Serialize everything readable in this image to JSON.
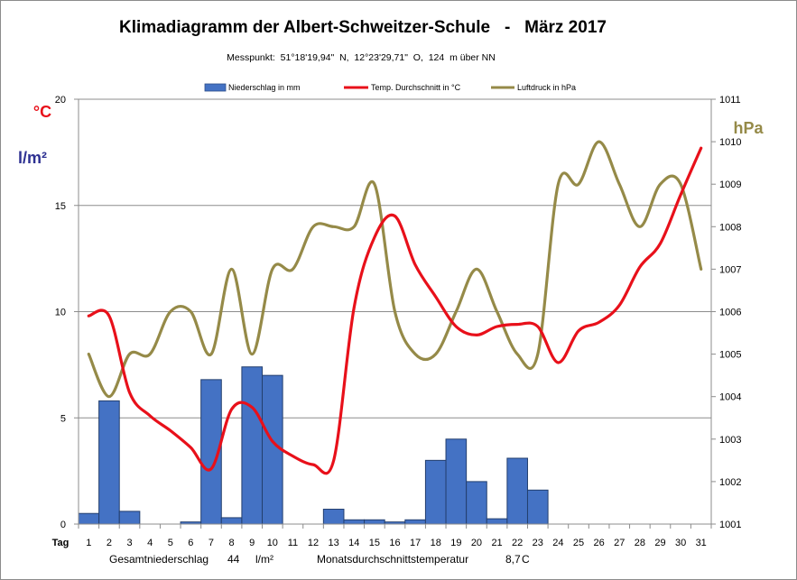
{
  "chart_data": {
    "type": "bar+line",
    "title": "Klimadiagramm der Albert-Schweitzer-Schule   -   März 2017",
    "subtitle": "Messpunkt:  51°18'19,94\"  N,  12°23'29,71\"  O,  124  m über NN",
    "x_axis": {
      "label": "Tag",
      "categories": [
        "1",
        "2",
        "3",
        "4",
        "5",
        "6",
        "7",
        "8",
        "9",
        "10",
        "11",
        "12",
        "13",
        "14",
        "15",
        "16",
        "17",
        "18",
        "19",
        "20",
        "21",
        "22",
        "23",
        "24",
        "25",
        "26",
        "27",
        "28",
        "29",
        "30",
        "31"
      ]
    },
    "y_left": {
      "unit_labels": [
        "°C",
        "l/m²"
      ],
      "ylim": [
        0,
        20
      ],
      "ticks": [
        0,
        5,
        10,
        15,
        20
      ]
    },
    "y_right": {
      "unit_label": "hPa",
      "ylim": [
        1001,
        1011
      ],
      "ticks": [
        1001,
        1002,
        1003,
        1004,
        1005,
        1006,
        1007,
        1008,
        1009,
        1010,
        1011
      ]
    },
    "legend_position": "top",
    "series": [
      {
        "name": "Niederschlag in mm",
        "kind": "bar",
        "axis": "left",
        "color": "#4472c4",
        "values": [
          0.5,
          5.8,
          0.6,
          0,
          0,
          0.1,
          6.8,
          0.3,
          7.4,
          7.0,
          0,
          0,
          0.7,
          0.2,
          0.2,
          0.1,
          0.2,
          3.0,
          4.0,
          2.0,
          0.25,
          3.1,
          1.6,
          0,
          0,
          0,
          0,
          0,
          0,
          0,
          0
        ]
      },
      {
        "name": "Temp. Durchschnitt in °C",
        "kind": "line",
        "axis": "left",
        "color": "#e8101a",
        "values": [
          9.8,
          9.8,
          6.2,
          5.1,
          4.4,
          3.6,
          2.6,
          5.4,
          5.5,
          3.9,
          3.2,
          2.8,
          3.0,
          10.2,
          13.5,
          14.5,
          12.2,
          10.7,
          9.3,
          8.9,
          9.3,
          9.4,
          9.3,
          7.6,
          9.1,
          9.5,
          10.3,
          12.1,
          13.2,
          15.5,
          17.7
        ]
      },
      {
        "name": "Luftdruck in hPa",
        "kind": "line",
        "axis": "right",
        "color": "#958a48",
        "values": [
          1005,
          1004,
          1005,
          1005,
          1006,
          1006,
          1005,
          1007,
          1005,
          1007,
          1007,
          1008,
          1008,
          1008,
          1009,
          1006,
          1005,
          1005,
          1006,
          1007,
          1006,
          1005,
          1005,
          1009,
          1009,
          1010,
          1009,
          1008,
          1009,
          1009,
          1007
        ]
      }
    ],
    "footer": {
      "total_precip_label": "Gesamtniederschlag",
      "total_precip_value": "44",
      "total_precip_unit": "l/m²",
      "mean_temp_label": "Monatsdurchschnittstemperatur",
      "mean_temp_value": "8,7",
      "mean_temp_unit": "C"
    }
  }
}
